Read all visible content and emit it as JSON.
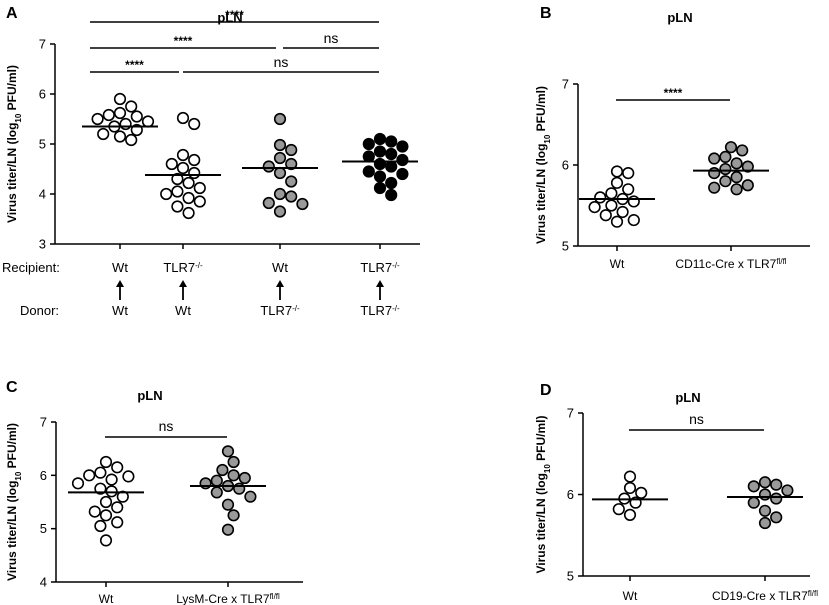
{
  "chart_data": [
    {
      "id": "A",
      "type": "scatter",
      "panel_label": "A",
      "title": "pLN",
      "ylabel": "Virus titer/LN (log",
      "ylabel_sub": "10",
      "ylabel_end": " PFU/ml)",
      "ylim": [
        3,
        7
      ],
      "yticks": [
        "3",
        "4",
        "5",
        "6",
        "7"
      ],
      "row_labels": {
        "recipient": "Recipient:",
        "donor": "Donor:"
      },
      "groups": [
        {
          "recipient": "Wt",
          "recipient_sup": "",
          "donor": "Wt",
          "donor_sup": "",
          "fill": "open",
          "mean": 5.35,
          "values": [
            5.9,
            5.75,
            5.62,
            5.58,
            5.55,
            5.5,
            5.45,
            5.4,
            5.35,
            5.28,
            5.2,
            5.15,
            5.08
          ]
        },
        {
          "recipient": "TLR7",
          "recipient_sup": "-/-",
          "donor": "Wt",
          "donor_sup": "",
          "fill": "open",
          "mean": 4.38,
          "values": [
            5.52,
            5.4,
            4.78,
            4.68,
            4.6,
            4.52,
            4.42,
            4.3,
            4.22,
            4.12,
            4.05,
            4.0,
            3.92,
            3.85,
            3.75,
            3.62
          ]
        },
        {
          "recipient": "Wt",
          "recipient_sup": "",
          "donor": "TLR7",
          "donor_sup": "-/-",
          "fill": "gray",
          "mean": 4.52,
          "values": [
            5.5,
            4.98,
            4.88,
            4.72,
            4.6,
            4.55,
            4.42,
            4.25,
            4.0,
            3.95,
            3.82,
            3.8,
            3.65
          ]
        },
        {
          "recipient": "TLR7",
          "recipient_sup": "-/-",
          "donor": "TLR7",
          "donor_sup": "-/-",
          "fill": "black",
          "mean": 4.65,
          "values": [
            5.1,
            5.05,
            5.0,
            4.95,
            4.85,
            4.8,
            4.75,
            4.68,
            4.6,
            4.55,
            4.45,
            4.4,
            4.35,
            4.22,
            4.12,
            3.98
          ]
        }
      ],
      "significance": [
        {
          "from": 0,
          "to": 3,
          "label": "****",
          "level": 3
        },
        {
          "from": 0,
          "to": 2,
          "label": "****",
          "level": 2
        },
        {
          "from": 2,
          "to": 3,
          "label": "ns",
          "level": 2
        },
        {
          "from": 0,
          "to": 1,
          "label": "****",
          "level": 1
        },
        {
          "from": 1,
          "to": 3,
          "label": "ns",
          "level": 1
        }
      ]
    },
    {
      "id": "B",
      "type": "scatter",
      "panel_label": "B",
      "title": "pLN",
      "ylabel": "Virus titer/LN (log",
      "ylabel_sub": "10",
      "ylabel_end": " PFU/ml)",
      "ylim": [
        5,
        7
      ],
      "yticks": [
        "5",
        "6",
        "7"
      ],
      "groups": [
        {
          "label": "Wt",
          "label_sup": "",
          "fill": "open",
          "mean": 5.58,
          "values": [
            5.92,
            5.9,
            5.78,
            5.7,
            5.65,
            5.6,
            5.58,
            5.55,
            5.5,
            5.48,
            5.42,
            5.38,
            5.32,
            5.3
          ]
        },
        {
          "label": "CD11c-Cre x TLR7",
          "label_sup": "fl/fl",
          "fill": "gray",
          "mean": 5.93,
          "values": [
            6.22,
            6.18,
            6.1,
            6.08,
            6.02,
            5.98,
            5.95,
            5.9,
            5.85,
            5.8,
            5.75,
            5.72,
            5.7
          ]
        }
      ],
      "significance": [
        {
          "from": 0,
          "to": 1,
          "label": "****",
          "level": 1
        }
      ]
    },
    {
      "id": "C",
      "type": "scatter",
      "panel_label": "C",
      "title": "pLN",
      "ylabel": "Virus titer/LN (log",
      "ylabel_sub": "10",
      "ylabel_end": " PFU/ml)",
      "ylim": [
        4,
        7
      ],
      "yticks": [
        "4",
        "5",
        "6",
        "7"
      ],
      "groups": [
        {
          "label": "Wt",
          "label_sup": "",
          "fill": "open",
          "mean": 5.68,
          "values": [
            6.25,
            6.15,
            6.05,
            6.0,
            5.98,
            5.92,
            5.85,
            5.75,
            5.7,
            5.6,
            5.5,
            5.4,
            5.32,
            5.25,
            5.12,
            5.05,
            4.78
          ]
        },
        {
          "label": "LysM-Cre x TLR7",
          "label_sup": "fl/fl",
          "fill": "gray",
          "mean": 5.8,
          "values": [
            6.45,
            6.25,
            6.1,
            6.0,
            5.95,
            5.9,
            5.85,
            5.8,
            5.75,
            5.68,
            5.6,
            5.45,
            5.25,
            4.98
          ]
        }
      ],
      "significance": [
        {
          "from": 0,
          "to": 1,
          "label": "ns",
          "level": 1
        }
      ]
    },
    {
      "id": "D",
      "type": "scatter",
      "panel_label": "D",
      "title": "pLN",
      "ylabel": "Virus titer/LN (log",
      "ylabel_sub": "10",
      "ylabel_end": " PFU/ml)",
      "ylim": [
        5,
        7
      ],
      "yticks": [
        "5",
        "6",
        "7"
      ],
      "groups": [
        {
          "label": "Wt",
          "label_sup": "",
          "fill": "open",
          "mean": 5.94,
          "values": [
            6.22,
            6.08,
            6.02,
            5.95,
            5.9,
            5.82,
            5.75
          ]
        },
        {
          "label": "CD19-Cre x TLR7",
          "label_sup": "fl/fl",
          "fill": "gray",
          "mean": 5.97,
          "values": [
            6.15,
            6.12,
            6.1,
            6.05,
            6.0,
            5.95,
            5.9,
            5.8,
            5.72,
            5.65
          ]
        }
      ],
      "significance": [
        {
          "from": 0,
          "to": 1,
          "label": "ns",
          "level": 1
        }
      ]
    }
  ],
  "colors": {
    "open": "#ffffff",
    "gray": "#999999",
    "black": "#000000",
    "stroke": "#000000"
  }
}
